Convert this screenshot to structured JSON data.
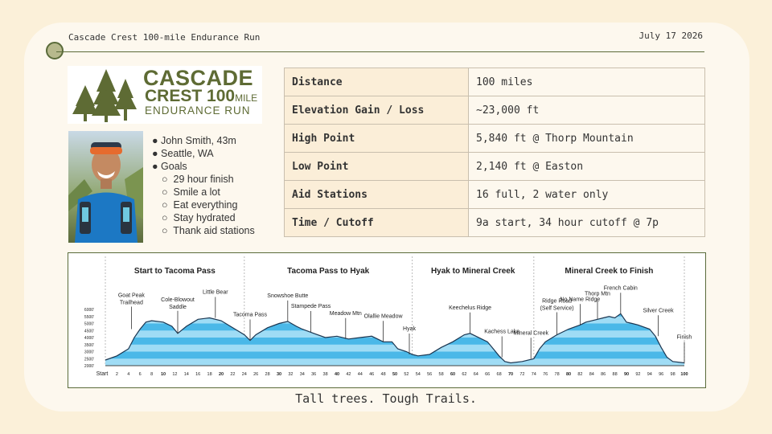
{
  "header": {
    "title": "Cascade Crest 100-mile Endurance Run",
    "date": "July 17 2026"
  },
  "logo": {
    "line1": "CASCADE",
    "line2": "CREST",
    "line2_num": "100",
    "line2_unit": "MILE",
    "line3": "ENDURANCE RUN"
  },
  "runner": {
    "name": "John Smith, 43m",
    "location": "Seattle, WA",
    "goals_label": "Goals",
    "goals": [
      "29 hour finish",
      "Smile a lot",
      "Eat everything",
      "Stay hydrated",
      "Thank aid stations"
    ]
  },
  "stats": [
    {
      "label": "Distance",
      "value": "100 miles"
    },
    {
      "label": "Elevation Gain / Loss",
      "value": "~23,000 ft"
    },
    {
      "label": "High Point",
      "value": "5,840 ft @ Thorp Mountain"
    },
    {
      "label": "Low Point",
      "value": "2,140 ft @ Easton"
    },
    {
      "label": "Aid Stations",
      "value": "16 full, 2 water only"
    },
    {
      "label": "Time / Cutoff",
      "value": "9a start, 34 hour cutoff @ 7p"
    }
  ],
  "tagline": "Tall trees. Tough Trails.",
  "chart_data": {
    "type": "area",
    "xlabel": "",
    "ylabel": "",
    "xlim": [
      0,
      100
    ],
    "ylim": [
      2000,
      6000
    ],
    "x_ticks": [
      "Start",
      "2",
      "4",
      "6",
      "8",
      "10",
      "12",
      "14",
      "16",
      "18",
      "20",
      "22",
      "24",
      "26",
      "28",
      "30",
      "32",
      "34",
      "36",
      "38",
      "40",
      "42",
      "44",
      "46",
      "48",
      "50",
      "52",
      "54",
      "56",
      "58",
      "60",
      "62",
      "64",
      "66",
      "68",
      "70",
      "72",
      "74",
      "76",
      "78",
      "80",
      "82",
      "84",
      "86",
      "88",
      "90",
      "92",
      "94",
      "96",
      "98",
      "100"
    ],
    "y_ticks": [
      "2000'",
      "2500'",
      "3000'",
      "3500'",
      "4000'",
      "4500'",
      "5000'",
      "5500'",
      "6000'"
    ],
    "sections": [
      {
        "name": "Start to Tacoma Pass",
        "from": 0,
        "to": 24
      },
      {
        "name": "Tacoma Pass to Hyak",
        "from": 24,
        "to": 53
      },
      {
        "name": "Hyak to Mineral Creek",
        "from": 53,
        "to": 74
      },
      {
        "name": "Mineral Creek to Finish",
        "from": 74,
        "to": 100
      }
    ],
    "profile": [
      [
        0,
        2400
      ],
      [
        2,
        2700
      ],
      [
        4,
        3200
      ],
      [
        5,
        4000
      ],
      [
        6,
        4600
      ],
      [
        7,
        5100
      ],
      [
        8,
        5200
      ],
      [
        10,
        5100
      ],
      [
        11.5,
        4800
      ],
      [
        12.5,
        4300
      ],
      [
        14,
        4800
      ],
      [
        16,
        5300
      ],
      [
        18,
        5400
      ],
      [
        20,
        5200
      ],
      [
        22,
        4700
      ],
      [
        24,
        4200
      ],
      [
        25,
        3800
      ],
      [
        26,
        4200
      ],
      [
        28,
        4700
      ],
      [
        30,
        5000
      ],
      [
        31.5,
        5150
      ],
      [
        33,
        4800
      ],
      [
        34,
        4600
      ],
      [
        36,
        4300
      ],
      [
        38,
        4000
      ],
      [
        40,
        4100
      ],
      [
        42,
        3900
      ],
      [
        44,
        4000
      ],
      [
        46,
        4100
      ],
      [
        48,
        3700
      ],
      [
        49.5,
        3700
      ],
      [
        50.5,
        3200
      ],
      [
        52,
        3000
      ],
      [
        53,
        2800
      ],
      [
        54,
        2700
      ],
      [
        56,
        2800
      ],
      [
        58,
        3300
      ],
      [
        60,
        3700
      ],
      [
        62,
        4200
      ],
      [
        63,
        4300
      ],
      [
        64,
        4100
      ],
      [
        66,
        3700
      ],
      [
        67,
        3200
      ],
      [
        68,
        2700
      ],
      [
        69,
        2300
      ],
      [
        70,
        2200
      ],
      [
        72,
        2300
      ],
      [
        74,
        2500
      ],
      [
        75,
        3200
      ],
      [
        76,
        3700
      ],
      [
        78,
        4200
      ],
      [
        80,
        4600
      ],
      [
        82,
        4900
      ],
      [
        83,
        5100
      ],
      [
        85,
        5300
      ],
      [
        86,
        5400
      ],
      [
        87,
        5500
      ],
      [
        88,
        5400
      ],
      [
        89,
        5700
      ],
      [
        90,
        5100
      ],
      [
        91,
        5000
      ],
      [
        92,
        4900
      ],
      [
        94,
        4600
      ],
      [
        95,
        4100
      ],
      [
        96,
        3300
      ],
      [
        97,
        2600
      ],
      [
        98,
        2300
      ],
      [
        100,
        2200
      ]
    ],
    "annotations": [
      {
        "label": "Goat Peak",
        "label2": "Trailhead",
        "x": 4.5,
        "y": 4600
      },
      {
        "label": "Cole-Blowout",
        "label2": "Saddle",
        "x": 12.5,
        "y": 4300
      },
      {
        "label": "Little Bear",
        "label2": "",
        "x": 19,
        "y": 5400
      },
      {
        "label": "Tacoma Pass",
        "label2": "",
        "x": 25,
        "y": 3800
      },
      {
        "label": "Snowshoe Butte",
        "label2": "",
        "x": 31.5,
        "y": 5150
      },
      {
        "label": "Stampede Pass",
        "label2": "",
        "x": 35.5,
        "y": 4400
      },
      {
        "label": "Meadow Mtn",
        "label2": "",
        "x": 41.5,
        "y": 3900
      },
      {
        "label": "Olallie Meadow",
        "label2": "",
        "x": 48,
        "y": 3700
      },
      {
        "label": "Hyak",
        "label2": "",
        "x": 52.5,
        "y": 2800
      },
      {
        "label": "Keechelus Ridge",
        "label2": "",
        "x": 63,
        "y": 4300
      },
      {
        "label": "Kachess Lake",
        "label2": "",
        "x": 68.5,
        "y": 2600
      },
      {
        "label": "Mineral Creek",
        "label2": "",
        "x": 73.5,
        "y": 2500
      },
      {
        "label": "Ridge Road",
        "label2": "(Self Service)",
        "x": 78,
        "y": 4200
      },
      {
        "label": "No Name Ridge",
        "label2": "",
        "x": 82,
        "y": 4900
      },
      {
        "label": "Thorp Mtn",
        "label2": "",
        "x": 85,
        "y": 5300
      },
      {
        "label": "French Cabin",
        "label2": "",
        "x": 89,
        "y": 5700
      },
      {
        "label": "Silver Creek",
        "label2": "",
        "x": 95.5,
        "y": 4100
      },
      {
        "label": "Finish",
        "label2": "",
        "x": 100,
        "y": 2200
      }
    ]
  },
  "colors": {
    "accent": "#5e6b34",
    "profile_fill": "#4ab8e8",
    "profile_band": "#9fdcf5",
    "profile_edge": "#1a3550"
  }
}
